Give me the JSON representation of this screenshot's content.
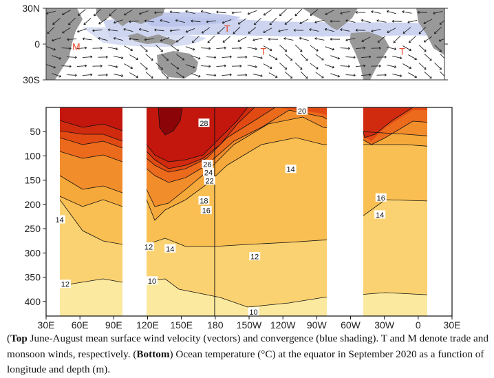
{
  "chart_data": [
    {
      "type": "vector-map",
      "title": "June-August mean surface wind velocity (vectors) and convergence (blue shading)",
      "y_ticks": [
        "30N",
        "0",
        "30S"
      ],
      "lat_range": [
        -30,
        30
      ],
      "lon_range": [
        30,
        360
      ],
      "annotations": [
        {
          "text": "M",
          "lon": 55,
          "lat": -2
        },
        {
          "text": "T",
          "lon": 180,
          "lat": 13
        },
        {
          "text": "T",
          "lon": 210,
          "lat": -6
        },
        {
          "text": "T",
          "lon": 325,
          "lat": -6
        }
      ]
    },
    {
      "type": "contour",
      "title": "Ocean temperature (°C) at the equator in September 2020 as a function of longitude and depth (m)",
      "x_ticks": [
        "30E",
        "60E",
        "90E",
        "120E",
        "150E",
        "180",
        "150W",
        "120W",
        "90W",
        "60W",
        "30W",
        "0",
        "30E"
      ],
      "x_tick_lon": [
        30,
        60,
        90,
        120,
        150,
        180,
        210,
        240,
        270,
        300,
        330,
        360,
        390
      ],
      "y_ticks": [
        "50",
        "100",
        "150",
        "200",
        "250",
        "300",
        "350",
        "400"
      ],
      "y_tick_values": [
        50,
        100,
        150,
        200,
        250,
        300,
        350,
        400
      ],
      "depth_range": [
        0,
        430
      ],
      "ocean_segments_lon": [
        [
          40,
          100
        ],
        [
          120,
          272
        ],
        [
          325,
          382
        ]
      ],
      "contour_levels": [
        10,
        12,
        14,
        16,
        18,
        20,
        22,
        24,
        26,
        28
      ],
      "contour_labels": [
        {
          "text": "28",
          "lon": 170,
          "depth": 33
        },
        {
          "text": "20",
          "lon": 257,
          "depth": 8
        },
        {
          "text": "26",
          "lon": 173,
          "depth": 118
        },
        {
          "text": "24",
          "lon": 174,
          "depth": 135
        },
        {
          "text": "22",
          "lon": 175,
          "depth": 152
        },
        {
          "text": "14",
          "lon": 247,
          "depth": 128
        },
        {
          "text": "18",
          "lon": 170,
          "depth": 193
        },
        {
          "text": "16",
          "lon": 172,
          "depth": 213
        },
        {
          "text": "14",
          "lon": 42,
          "depth": 232
        },
        {
          "text": "12",
          "lon": 121,
          "depth": 288
        },
        {
          "text": "14",
          "lon": 140,
          "depth": 292
        },
        {
          "text": "12",
          "lon": 215,
          "depth": 308
        },
        {
          "text": "12",
          "lon": 47,
          "depth": 365
        },
        {
          "text": "10",
          "lon": 124,
          "depth": 358
        },
        {
          "text": "10",
          "lon": 214,
          "depth": 422
        },
        {
          "text": "16",
          "lon": 327,
          "depth": 187
        },
        {
          "text": "14",
          "lon": 326,
          "depth": 222
        }
      ],
      "colors": {
        "lt10": "#fbe9a0",
        "10": "#fbd271",
        "12": "#f9bf52",
        "16": "#f6a93b",
        "18": "#f28d2b",
        "20": "#ec6a1c",
        "22": "#e24a13",
        "24": "#d12b0f",
        "26": "#c3160d",
        "28": "#8b0508"
      }
    }
  ],
  "caption": {
    "top_label": "Top",
    "top_text": " June-August mean surface wind velocity (vectors) and convergence (blue shading). T and M denote trade and monsoon winds, respectively. (",
    "bottom_label": "Bottom",
    "bottom_text": ") Ocean temperature (°C) at the equator in September 2020 as a function of longitude and depth (m)."
  }
}
